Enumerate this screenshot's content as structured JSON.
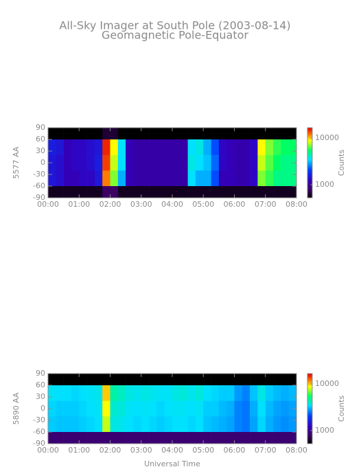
{
  "chart_data": [
    {
      "type": "heatmap",
      "title": "All-Sky Imager at South Pole (2003-08-14)",
      "subtitle": "Geomagnetic Pole-Equator",
      "ylabel": "5577 AA",
      "zlabel": "Counts",
      "log_z": true,
      "x_edges": [
        0,
        0.25,
        0.5,
        0.75,
        1,
        1.25,
        1.5,
        1.75,
        2,
        2.25,
        2.5,
        2.75,
        3,
        3.25,
        3.5,
        3.75,
        4,
        4.25,
        4.5,
        4.75,
        5,
        5.25,
        5.5,
        5.75,
        6,
        6.25,
        6.5,
        6.75,
        7,
        7.25,
        7.5,
        7.75,
        8
      ],
      "y_edges": [
        90,
        60,
        20,
        -20,
        -60,
        -90
      ],
      "z": [
        [
          450,
          450,
          450,
          450,
          450,
          450,
          450,
          650,
          650,
          450,
          450,
          450,
          450,
          450,
          450,
          450,
          450,
          450,
          450,
          450,
          450,
          450,
          450,
          450,
          450,
          450,
          450,
          450,
          450,
          450,
          450,
          450
        ],
        [
          1600,
          1500,
          1200,
          1300,
          1300,
          1400,
          1500,
          15000,
          9000,
          3500,
          1200,
          1100,
          1100,
          1100,
          1100,
          1100,
          1100,
          1100,
          3500,
          3800,
          3000,
          2200,
          1300,
          1200,
          1150,
          1150,
          1300,
          9000,
          7000,
          6000,
          5500,
          5500
        ],
        [
          1500,
          1400,
          1200,
          1300,
          1300,
          1400,
          1600,
          14000,
          8000,
          3500,
          1200,
          1100,
          1100,
          1100,
          1100,
          1100,
          1100,
          1100,
          3800,
          3500,
          3200,
          2400,
          1300,
          1200,
          1150,
          1150,
          1300,
          8000,
          6500,
          5500,
          5000,
          5000
        ],
        [
          1500,
          1400,
          1200,
          1200,
          1300,
          1300,
          1500,
          12000,
          7000,
          3000,
          1200,
          1100,
          1100,
          1100,
          1100,
          1100,
          1100,
          1100,
          3500,
          3000,
          3000,
          2200,
          1200,
          1200,
          1150,
          1150,
          1300,
          7000,
          6000,
          5000,
          5000,
          5000
        ],
        [
          600,
          600,
          600,
          600,
          600,
          600,
          600,
          800,
          800,
          600,
          600,
          600,
          600,
          600,
          600,
          600,
          600,
          600,
          600,
          600,
          600,
          600,
          600,
          600,
          600,
          600,
          600,
          600,
          600,
          600,
          600,
          600
        ]
      ],
      "xlim": [
        0,
        8
      ],
      "xticks": [
        {
          "value": 0,
          "label": "00:00"
        },
        {
          "value": 1,
          "label": "01:00"
        },
        {
          "value": 2,
          "label": "02:00"
        },
        {
          "value": 3,
          "label": "03:00"
        },
        {
          "value": 4,
          "label": "04:00"
        },
        {
          "value": 5,
          "label": "05:00"
        },
        {
          "value": 6,
          "label": "06:00"
        },
        {
          "value": 7,
          "label": "07:00"
        },
        {
          "value": 8,
          "label": "08:00"
        }
      ],
      "ylim": [
        -90,
        90
      ],
      "yticks": [
        90,
        60,
        30,
        0,
        -30,
        -60,
        -90
      ],
      "zlim": [
        525,
        16600
      ],
      "zticks": [
        1000,
        10000
      ]
    },
    {
      "type": "heatmap",
      "xlabel": "Universal Time",
      "ylabel": "5890 AA",
      "zlabel": "Counts",
      "log_z": true,
      "x_edges": [
        0,
        0.25,
        0.5,
        0.75,
        1,
        1.25,
        1.5,
        1.75,
        2,
        2.25,
        2.5,
        2.75,
        3,
        3.25,
        3.5,
        3.75,
        4,
        4.25,
        4.5,
        4.75,
        5,
        5.25,
        5.5,
        5.75,
        6,
        6.25,
        6.5,
        6.75,
        7,
        7.25,
        7.5,
        7.75,
        8
      ],
      "y_edges": [
        90,
        60,
        20,
        -20,
        -60,
        -90
      ],
      "z": [
        [
          450,
          450,
          450,
          450,
          450,
          450,
          450,
          520,
          450,
          450,
          450,
          450,
          450,
          450,
          450,
          450,
          450,
          450,
          450,
          450,
          450,
          450,
          450,
          450,
          450,
          450,
          450,
          450,
          450,
          450,
          450,
          450
        ],
        [
          3600,
          3500,
          3500,
          3400,
          3500,
          3600,
          3700,
          10000,
          4500,
          4200,
          3800,
          3700,
          3800,
          3700,
          3600,
          3600,
          3800,
          3900,
          3700,
          3900,
          3500,
          3400,
          3300,
          3300,
          2800,
          2600,
          3200,
          3800,
          3300,
          3100,
          3000,
          3100
        ],
        [
          3400,
          3300,
          3300,
          3300,
          3400,
          3500,
          3600,
          9000,
          4000,
          3900,
          3600,
          3500,
          3600,
          3500,
          3400,
          3500,
          3600,
          3600,
          3500,
          3600,
          3300,
          3300,
          3100,
          3000,
          2600,
          2500,
          3000,
          3500,
          3100,
          2900,
          2800,
          2900
        ],
        [
          3300,
          3200,
          3200,
          3200,
          3300,
          3400,
          3500,
          8000,
          3800,
          3700,
          3500,
          3400,
          3500,
          3400,
          3300,
          3400,
          3500,
          3500,
          3400,
          3500,
          3200,
          3100,
          3000,
          2900,
          2600,
          2500,
          2900,
          3400,
          3000,
          2800,
          2700,
          2800
        ],
        [
          850,
          850,
          850,
          850,
          850,
          850,
          850,
          850,
          850,
          850,
          850,
          850,
          850,
          850,
          850,
          850,
          850,
          850,
          850,
          850,
          850,
          850,
          850,
          850,
          850,
          850,
          850,
          850,
          850,
          850,
          850,
          850
        ]
      ],
      "xlim": [
        0,
        8
      ],
      "xticks": [
        {
          "value": 0,
          "label": "00:00"
        },
        {
          "value": 1,
          "label": "01:00"
        },
        {
          "value": 2,
          "label": "02:00"
        },
        {
          "value": 3,
          "label": "03:00"
        },
        {
          "value": 4,
          "label": "04:00"
        },
        {
          "value": 5,
          "label": "05:00"
        },
        {
          "value": 6,
          "label": "06:00"
        },
        {
          "value": 7,
          "label": "07:00"
        },
        {
          "value": 8,
          "label": "08:00"
        }
      ],
      "ylim": [
        -90,
        90
      ],
      "yticks": [
        90,
        60,
        30,
        0,
        -30,
        -60,
        -90
      ],
      "zlim": [
        525,
        16600
      ],
      "zticks": [
        1000,
        10000
      ]
    }
  ]
}
